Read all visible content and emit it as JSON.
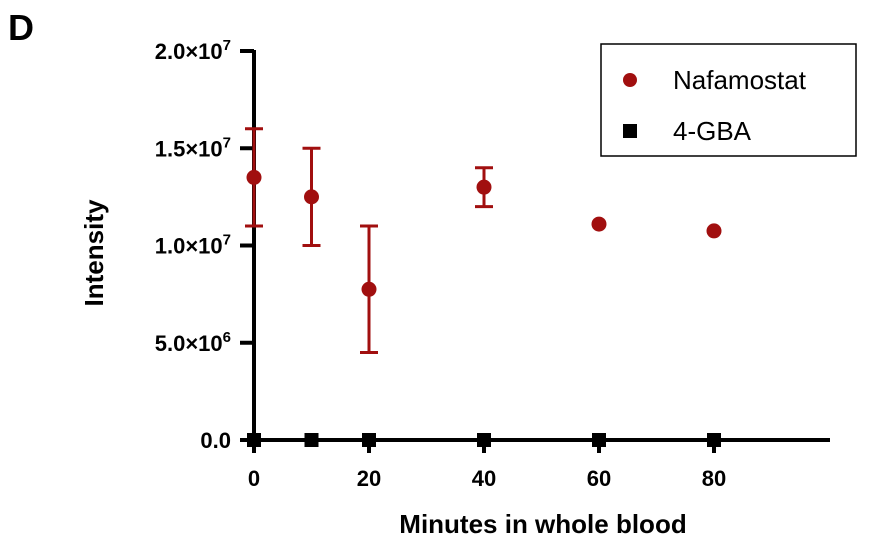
{
  "panel_label": "D",
  "chart_data": {
    "type": "scatter",
    "xlabel": "Minutes in whole blood",
    "ylabel": "Intensity",
    "xlim": [
      0,
      90
    ],
    "ylim": [
      0,
      20000000
    ],
    "x_ticks": [
      0,
      20,
      40,
      60,
      80
    ],
    "y_ticks": [
      {
        "value": 0,
        "mantissa": "0.0",
        "exponent": ""
      },
      {
        "value": 5000000,
        "mantissa": "5.0×10",
        "exponent": "6"
      },
      {
        "value": 10000000,
        "mantissa": "1.0×10",
        "exponent": "7"
      },
      {
        "value": 15000000,
        "mantissa": "1.5×10",
        "exponent": "7"
      },
      {
        "value": 20000000,
        "mantissa": "2.0×10",
        "exponent": "7"
      }
    ],
    "grid": false,
    "legend_position": "top-right",
    "series": [
      {
        "name": "Nafamostat",
        "color": "#a10f0f",
        "marker": "circle",
        "x": [
          0,
          10,
          20,
          40,
          60,
          80
        ],
        "y": [
          13500000,
          12500000,
          7750000,
          13000000,
          11100000,
          10750000
        ],
        "error_low": [
          11000000,
          10000000,
          4500000,
          12000000,
          null,
          null
        ],
        "error_high": [
          16000000,
          15000000,
          11000000,
          14000000,
          null,
          null
        ]
      },
      {
        "name": "4-GBA",
        "color": "#000000",
        "marker": "square",
        "x": [
          0,
          10,
          20,
          40,
          60,
          80
        ],
        "y": [
          0,
          0,
          0,
          0,
          0,
          0
        ]
      }
    ]
  }
}
